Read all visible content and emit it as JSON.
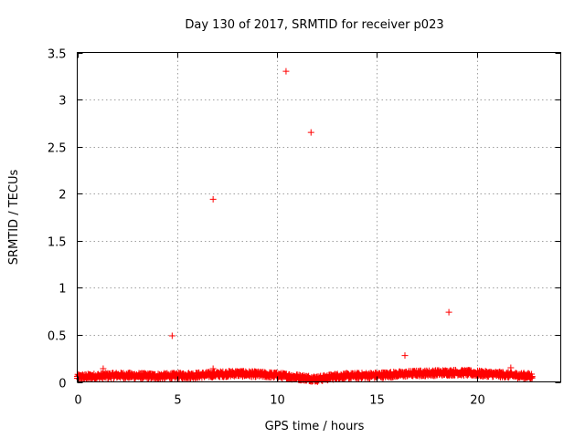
{
  "chart_data": {
    "type": "scatter",
    "title": "Day 130 of 2017, SRMTID for receiver p023",
    "xlabel": "GPS time / hours",
    "ylabel": "SRMTID / TECUs",
    "xlim": [
      0,
      24.2
    ],
    "ylim": [
      0,
      3.5
    ],
    "xticks": [
      0,
      5,
      10,
      15,
      20
    ],
    "yticks": [
      0,
      0.5,
      1,
      1.5,
      2,
      2.5,
      3,
      3.5
    ],
    "xtick_labels": [
      "0",
      "5",
      "10",
      "15",
      "20"
    ],
    "ytick_labels": [
      "0",
      "0.5",
      "1",
      "1.5",
      "2",
      "2.5",
      "3",
      "3.5"
    ],
    "grid": true,
    "marker": "+",
    "color": "#ff0000",
    "outliers": [
      {
        "x": 4.75,
        "y": 0.49
      },
      {
        "x": 6.8,
        "y": 1.94
      },
      {
        "x": 10.45,
        "y": 3.3
      },
      {
        "x": 11.7,
        "y": 2.65
      },
      {
        "x": 16.4,
        "y": 0.28
      },
      {
        "x": 18.6,
        "y": 0.74
      },
      {
        "x": 1.3,
        "y": 0.14
      },
      {
        "x": 6.8,
        "y": 0.14
      },
      {
        "x": 21.7,
        "y": 0.15
      }
    ],
    "dense_band": {
      "x_range": [
        0,
        22.8
      ],
      "y_profile": [
        {
          "x": 0,
          "y": 0.05
        },
        {
          "x": 2,
          "y": 0.07
        },
        {
          "x": 4,
          "y": 0.06
        },
        {
          "x": 6,
          "y": 0.07
        },
        {
          "x": 8,
          "y": 0.09
        },
        {
          "x": 10,
          "y": 0.07
        },
        {
          "x": 12,
          "y": 0.03
        },
        {
          "x": 13,
          "y": 0.06
        },
        {
          "x": 15,
          "y": 0.07
        },
        {
          "x": 17,
          "y": 0.09
        },
        {
          "x": 19,
          "y": 0.1
        },
        {
          "x": 21,
          "y": 0.08
        },
        {
          "x": 22.8,
          "y": 0.06
        }
      ]
    }
  }
}
